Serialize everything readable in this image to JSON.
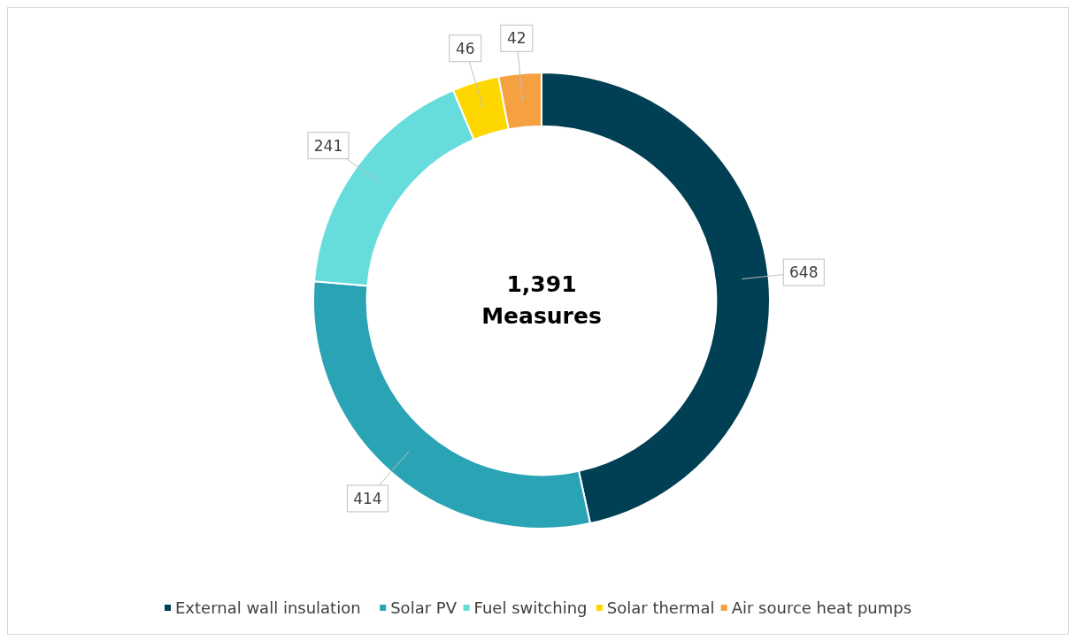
{
  "chart_data": {
    "type": "donut",
    "categories": [
      "External wall insulation",
      "Solar PV",
      "Fuel switching",
      "Solar thermal",
      "Air source heat pumps"
    ],
    "values": [
      648,
      414,
      241,
      46,
      42
    ],
    "colors": [
      "#003f54",
      "#2aa3b5",
      "#66dcdc",
      "#ffd700",
      "#f5a142"
    ],
    "data_labels": true,
    "legend": "bottom",
    "annotations": [
      "1,391",
      "Measures"
    ]
  }
}
